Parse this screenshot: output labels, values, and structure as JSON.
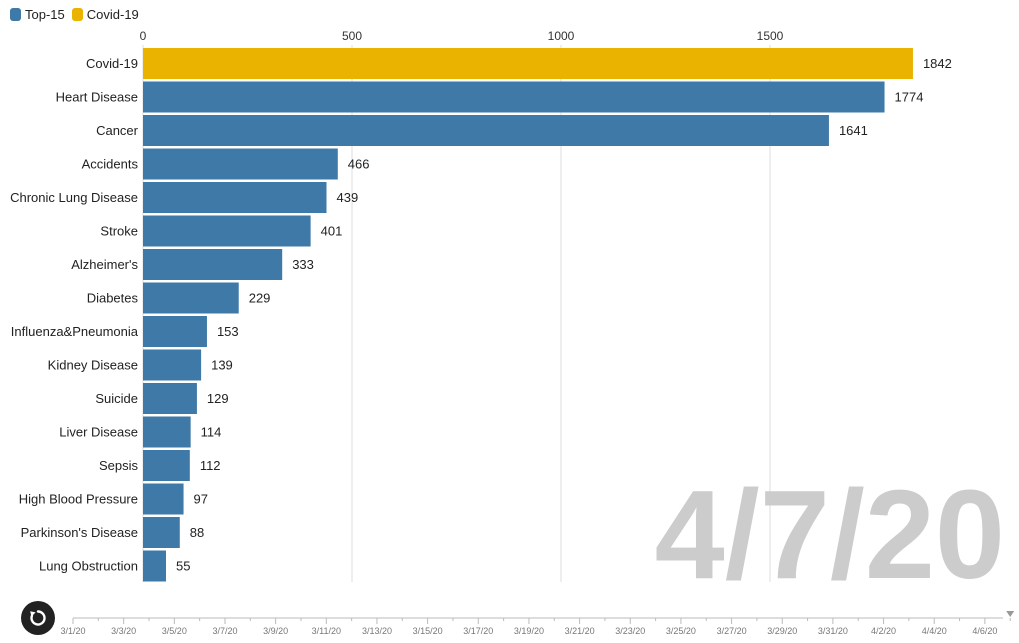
{
  "legend": {
    "items": [
      {
        "label": "Top-15",
        "color": "#3e79a7"
      },
      {
        "label": "Covid-19",
        "color": "#e9b300"
      }
    ]
  },
  "current_date": "4/7/20",
  "timeline": {
    "ticks": [
      "3/1/20",
      "3/3/20",
      "3/5/20",
      "3/7/20",
      "3/9/20",
      "3/11/20",
      "3/13/20",
      "3/15/20",
      "3/17/20",
      "3/19/20",
      "3/21/20",
      "3/23/20",
      "3/25/20",
      "3/27/20",
      "3/29/20",
      "3/31/20",
      "4/2/20",
      "4/4/20",
      "4/6/20"
    ],
    "selected": "4/7/20"
  },
  "replay_icon": "replay-icon",
  "chart_data": {
    "type": "bar",
    "orientation": "horizontal",
    "title": "",
    "xlabel": "",
    "ylabel": "",
    "xlim": [
      0,
      1900
    ],
    "xticks": [
      0,
      500,
      1000,
      1500
    ],
    "x_axis_position": "top",
    "grid": true,
    "legend_position": "top-left",
    "categories": [
      "Covid-19",
      "Heart Disease",
      "Cancer",
      "Accidents",
      "Chronic Lung Disease",
      "Stroke",
      "Alzheimer's",
      "Diabetes",
      "Influenza&Pneumonia",
      "Kidney Disease",
      "Suicide",
      "Liver Disease",
      "Sepsis",
      "High Blood Pressure",
      "Parkinson's Disease",
      "Lung Obstruction"
    ],
    "values": [
      1842,
      1774,
      1641,
      466,
      439,
      401,
      333,
      229,
      153,
      139,
      129,
      114,
      112,
      97,
      88,
      55
    ],
    "series_of_bar": [
      "Covid-19",
      "Top-15",
      "Top-15",
      "Top-15",
      "Top-15",
      "Top-15",
      "Top-15",
      "Top-15",
      "Top-15",
      "Top-15",
      "Top-15",
      "Top-15",
      "Top-15",
      "Top-15",
      "Top-15",
      "Top-15"
    ],
    "colors": {
      "Top-15": "#3e79a7",
      "Covid-19": "#e9b300"
    },
    "date_watermark": "4/7/20"
  }
}
